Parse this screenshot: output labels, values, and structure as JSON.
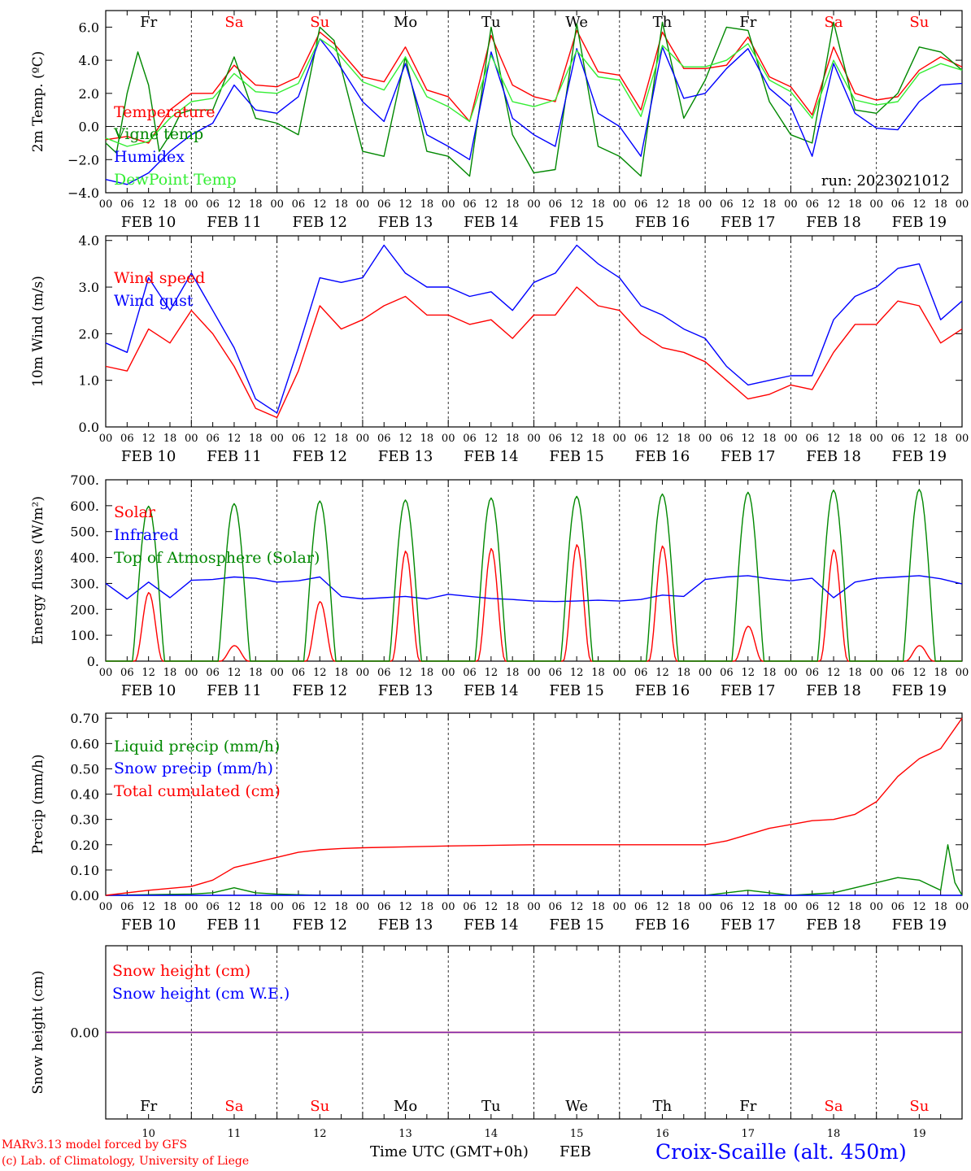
{
  "meteogram": {
    "run_label": "run: 2023021012",
    "location": "Croix-Scaille (alt. 450m)",
    "credit_line1": "MARv3.13 model forced by GFS",
    "credit_line2": "(c) Lab. of Climatology, University of Liege",
    "time_axis_label": "Time UTC (GMT+0h)",
    "month_label": "FEB",
    "colors": {
      "red": "#ff0000",
      "blue": "#0000ff",
      "dkgreen": "#008800",
      "ltgreen": "#33ee33",
      "purple": "#7a1fa8",
      "grid": "#000000",
      "axis": "#000000"
    }
  },
  "chart_data": [
    {
      "type": "line",
      "title": "",
      "ylabel": "2m Temp. (ºC)",
      "ylim": [
        -4,
        7
      ],
      "yticks": [
        6.0,
        4.0,
        2.0,
        0.0,
        -2.0,
        -4.0
      ],
      "ytick_labels": [
        "6.0",
        "4.0",
        "2.0",
        "0.0",
        "−2.0",
        "−4.0"
      ],
      "x_unit": "hours since FEB 10 00 UTC",
      "xlim": [
        0,
        240
      ],
      "hour_ticks": [
        "00",
        "06",
        "12",
        "18"
      ],
      "date_labels": [
        "FEB 10",
        "FEB 11",
        "FEB 12",
        "FEB 13",
        "FEB 14",
        "FEB 15",
        "FEB 16",
        "FEB 17",
        "FEB 18",
        "FEB 19"
      ],
      "weekdays": [
        "Fr",
        "Sa",
        "Su",
        "Mo",
        "Tu",
        "We",
        "Th",
        "Fr",
        "Sa",
        "Su"
      ],
      "weekday_colors": [
        "#000000",
        "#ff0000",
        "#ff0000",
        "#000000",
        "#000000",
        "#000000",
        "#000000",
        "#000000",
        "#ff0000",
        "#ff0000"
      ],
      "zero_line": true,
      "series": [
        {
          "name": "Temperature",
          "color": "#ff0000",
          "x": [
            0,
            6,
            12,
            18,
            24,
            30,
            36,
            42,
            48,
            54,
            60,
            64,
            72,
            78,
            84,
            90,
            96,
            102,
            108,
            114,
            120,
            126,
            132,
            138,
            144,
            150,
            156,
            162,
            168,
            174,
            180,
            186,
            192,
            198,
            204,
            210,
            216,
            222,
            228,
            234,
            240
          ],
          "y": [
            -0.8,
            -0.6,
            -1.0,
            1.0,
            2.0,
            2.0,
            3.7,
            2.5,
            2.4,
            3.0,
            5.7,
            5.0,
            3.0,
            2.7,
            4.8,
            2.2,
            1.8,
            0.3,
            5.5,
            2.5,
            1.8,
            1.5,
            5.8,
            3.3,
            3.1,
            1.0,
            5.7,
            3.5,
            3.5,
            3.7,
            5.4,
            3.0,
            2.4,
            0.7,
            4.8,
            2.0,
            1.6,
            1.8,
            3.4,
            4.2,
            3.6
          ]
        },
        {
          "name": "Vigne temp",
          "color": "#008800",
          "x": [
            0,
            3,
            6,
            9,
            12,
            15,
            18,
            21,
            24,
            30,
            36,
            42,
            48,
            54,
            60,
            64,
            72,
            78,
            84,
            90,
            96,
            102,
            108,
            114,
            120,
            126,
            132,
            138,
            144,
            150,
            156,
            162,
            168,
            174,
            180,
            186,
            192,
            198,
            204,
            210,
            216,
            222,
            228,
            234,
            240
          ],
          "y": [
            -1.0,
            -1.6,
            2.0,
            4.5,
            2.5,
            -1.5,
            -0.5,
            0.8,
            1.0,
            1.0,
            4.2,
            0.5,
            0.2,
            -0.5,
            6.0,
            5.2,
            -1.5,
            -1.8,
            4.2,
            -1.5,
            -1.8,
            -3.0,
            6.0,
            -0.5,
            -2.8,
            -2.6,
            6.2,
            -1.2,
            -1.8,
            -3.0,
            6.3,
            0.5,
            2.8,
            6.0,
            5.8,
            1.5,
            -0.5,
            -1.0,
            6.3,
            1.0,
            0.8,
            2.0,
            4.8,
            4.5,
            3.4
          ]
        },
        {
          "name": "Humidex",
          "color": "#0000ff",
          "x": [
            0,
            6,
            12,
            18,
            24,
            30,
            36,
            42,
            48,
            54,
            60,
            64,
            72,
            78,
            84,
            90,
            96,
            102,
            108,
            114,
            120,
            126,
            132,
            138,
            144,
            150,
            156,
            162,
            168,
            174,
            180,
            186,
            192,
            198,
            204,
            210,
            216,
            222,
            228,
            234,
            240
          ],
          "y": [
            -3.2,
            -3.5,
            -2.8,
            -1.5,
            -0.5,
            0.2,
            2.5,
            1.0,
            0.8,
            1.8,
            5.3,
            4.2,
            1.5,
            0.3,
            3.8,
            -0.5,
            -1.2,
            -2.0,
            4.5,
            0.5,
            -0.5,
            -1.2,
            4.7,
            0.8,
            0.0,
            -1.8,
            4.8,
            1.7,
            2.0,
            3.5,
            4.7,
            2.3,
            1.2,
            -1.8,
            3.8,
            0.8,
            -0.1,
            -0.2,
            1.5,
            2.5,
            2.6
          ]
        },
        {
          "name": "DewPoint Temp",
          "color": "#33ee33",
          "x": [
            0,
            6,
            12,
            18,
            24,
            30,
            36,
            42,
            48,
            54,
            60,
            64,
            72,
            78,
            84,
            90,
            96,
            102,
            108,
            114,
            120,
            126,
            132,
            138,
            144,
            150,
            156,
            162,
            168,
            174,
            180,
            186,
            192,
            198,
            204,
            210,
            216,
            222,
            228,
            234,
            240
          ],
          "y": [
            -0.7,
            -1.2,
            -0.9,
            0.5,
            1.5,
            1.7,
            3.2,
            2.1,
            2.0,
            2.6,
            5.3,
            4.7,
            2.7,
            2.2,
            4.2,
            1.8,
            1.2,
            0.3,
            4.3,
            1.5,
            1.2,
            1.6,
            4.6,
            3.0,
            2.8,
            0.6,
            4.9,
            3.6,
            3.6,
            4.0,
            5.0,
            2.8,
            2.1,
            0.5,
            4.0,
            1.6,
            1.3,
            1.5,
            3.2,
            3.8,
            3.4
          ]
        }
      ]
    },
    {
      "type": "line",
      "title": "",
      "ylabel": "10m Wind (m/s)",
      "ylim": [
        0,
        4.1
      ],
      "yticks": [
        4.0,
        3.0,
        2.0,
        1.0,
        0.0
      ],
      "ytick_labels": [
        "4.0",
        "3.0",
        "2.0",
        "1.0",
        "0.0"
      ],
      "x_unit": "hours since FEB 10 00 UTC",
      "xlim": [
        0,
        240
      ],
      "hour_ticks": [
        "00",
        "06",
        "12",
        "18"
      ],
      "date_labels": [
        "FEB 10",
        "FEB 11",
        "FEB 12",
        "FEB 13",
        "FEB 14",
        "FEB 15",
        "FEB 16",
        "FEB 17",
        "FEB 18",
        "FEB 19"
      ],
      "series": [
        {
          "name": "Wind speed",
          "color": "#ff0000",
          "x": [
            0,
            6,
            12,
            18,
            24,
            30,
            36,
            42,
            48,
            54,
            60,
            66,
            72,
            78,
            84,
            90,
            96,
            102,
            108,
            114,
            120,
            126,
            132,
            138,
            144,
            150,
            156,
            162,
            168,
            174,
            180,
            186,
            192,
            198,
            204,
            210,
            216,
            222,
            228,
            234,
            240
          ],
          "y": [
            1.3,
            1.2,
            2.1,
            1.8,
            2.5,
            2.0,
            1.3,
            0.4,
            0.2,
            1.2,
            2.6,
            2.1,
            2.3,
            2.6,
            2.8,
            2.4,
            2.4,
            2.2,
            2.3,
            1.9,
            2.4,
            2.4,
            3.0,
            2.6,
            2.5,
            2.0,
            1.7,
            1.6,
            1.4,
            1.0,
            0.6,
            0.7,
            0.9,
            0.8,
            1.6,
            2.2,
            2.2,
            2.7,
            2.6,
            1.8,
            2.1
          ]
        },
        {
          "name": "Wind gust",
          "color": "#0000ff",
          "x": [
            0,
            6,
            12,
            18,
            24,
            30,
            36,
            42,
            48,
            54,
            60,
            66,
            72,
            78,
            84,
            90,
            96,
            102,
            108,
            114,
            120,
            126,
            132,
            138,
            144,
            150,
            156,
            162,
            168,
            174,
            180,
            186,
            192,
            198,
            204,
            210,
            216,
            222,
            228,
            234,
            240
          ],
          "y": [
            1.8,
            1.6,
            3.2,
            2.5,
            3.3,
            2.5,
            1.7,
            0.6,
            0.3,
            1.7,
            3.2,
            3.1,
            3.2,
            3.9,
            3.3,
            3.0,
            3.0,
            2.8,
            2.9,
            2.5,
            3.1,
            3.3,
            3.9,
            3.5,
            3.2,
            2.6,
            2.4,
            2.1,
            1.9,
            1.3,
            0.9,
            1.0,
            1.1,
            1.1,
            2.3,
            2.8,
            3.0,
            3.4,
            3.5,
            2.3,
            2.7
          ]
        }
      ]
    },
    {
      "type": "line",
      "title": "",
      "ylabel": "Energy fluxes (W/m²)",
      "ylim": [
        0,
        700
      ],
      "yticks": [
        700,
        600,
        500,
        400,
        300,
        200,
        100,
        0
      ],
      "ytick_labels": [
        "700.",
        "600.",
        "500.",
        "400.",
        "300.",
        "200.",
        "100.",
        "0."
      ],
      "x_unit": "hours since FEB 10 00 UTC",
      "xlim": [
        0,
        240
      ],
      "hour_ticks": [
        "00",
        "06",
        "12",
        "18"
      ],
      "date_labels": [
        "FEB 10",
        "FEB 11",
        "FEB 12",
        "FEB 13",
        "FEB 14",
        "FEB 15",
        "FEB 16",
        "FEB 17",
        "FEB 18",
        "FEB 19"
      ],
      "series": [
        {
          "name": "Solar",
          "color": "#ff0000",
          "x": [
            0,
            24,
            48,
            72,
            96,
            120,
            144,
            168,
            192,
            216
          ],
          "daily_peak": [
            265,
            60,
            230,
            425,
            435,
            450,
            445,
            135,
            430,
            60
          ]
        },
        {
          "name": "Infrared",
          "color": "#0000ff",
          "x": [
            0,
            6,
            12,
            18,
            24,
            30,
            36,
            42,
            48,
            54,
            60,
            66,
            72,
            78,
            84,
            90,
            96,
            102,
            108,
            114,
            120,
            126,
            132,
            138,
            144,
            150,
            156,
            162,
            168,
            174,
            180,
            186,
            192,
            198,
            204,
            210,
            216,
            222,
            228,
            234,
            240
          ],
          "y": [
            300,
            240,
            305,
            245,
            312,
            315,
            325,
            320,
            305,
            310,
            325,
            250,
            240,
            245,
            250,
            240,
            258,
            250,
            242,
            238,
            232,
            230,
            232,
            235,
            232,
            238,
            255,
            250,
            315,
            325,
            330,
            318,
            310,
            320,
            245,
            305,
            320,
            325,
            330,
            318,
            298
          ]
        },
        {
          "name": "Top of Atmosphere (Solar)",
          "color": "#008800",
          "x": [
            0,
            24,
            48,
            72,
            96,
            120,
            144,
            168,
            192,
            216
          ],
          "daily_peak": [
            598,
            608,
            618,
            622,
            630,
            636,
            645,
            652,
            660,
            663
          ]
        }
      ]
    },
    {
      "type": "line",
      "title": "",
      "ylabel": "Precip (mm/h)",
      "ylim": [
        0,
        0.72
      ],
      "yticks": [
        0.7,
        0.6,
        0.5,
        0.4,
        0.3,
        0.2,
        0.1,
        0.0
      ],
      "ytick_labels": [
        "0.70",
        "0.60",
        "0.50",
        "0.40",
        "0.30",
        "0.20",
        "0.10",
        "0.00"
      ],
      "x_unit": "hours since FEB 10 00 UTC",
      "xlim": [
        0,
        240
      ],
      "hour_ticks": [
        "00",
        "06",
        "12",
        "18"
      ],
      "date_labels": [
        "FEB 10",
        "FEB 11",
        "FEB 12",
        "FEB 13",
        "FEB 14",
        "FEB 15",
        "FEB 16",
        "FEB 17",
        "FEB 18",
        "FEB 19"
      ],
      "series": [
        {
          "name": "Liquid precip (mm/h)",
          "color": "#008800",
          "x": [
            0,
            24,
            30,
            36,
            42,
            48,
            60,
            168,
            174,
            180,
            186,
            192,
            204,
            210,
            216,
            222,
            228,
            234,
            236,
            238,
            240
          ],
          "y": [
            0.0,
            0.005,
            0.01,
            0.03,
            0.01,
            0.005,
            0.0,
            0.0,
            0.01,
            0.02,
            0.01,
            0.0,
            0.01,
            0.03,
            0.05,
            0.07,
            0.06,
            0.02,
            0.2,
            0.05,
            0.0
          ]
        },
        {
          "name": "Snow precip (mm/h)",
          "color": "#0000ff",
          "x": [
            0,
            240
          ],
          "y": [
            0.0,
            0.0
          ]
        },
        {
          "name": "Total cumulated (cm)",
          "color": "#ff0000",
          "x": [
            0,
            12,
            24,
            30,
            36,
            42,
            48,
            54,
            60,
            66,
            72,
            96,
            120,
            144,
            168,
            174,
            180,
            186,
            192,
            198,
            204,
            210,
            216,
            222,
            228,
            234,
            240
          ],
          "y": [
            0.0,
            0.02,
            0.035,
            0.06,
            0.11,
            0.13,
            0.15,
            0.17,
            0.18,
            0.185,
            0.188,
            0.195,
            0.2,
            0.2,
            0.2,
            0.215,
            0.24,
            0.265,
            0.28,
            0.295,
            0.3,
            0.32,
            0.37,
            0.47,
            0.54,
            0.58,
            0.7
          ]
        }
      ]
    },
    {
      "type": "line",
      "title": "",
      "ylabel": "Snow height (cm)",
      "ylim": [
        -1,
        1
      ],
      "yticks": [
        0.0
      ],
      "ytick_labels": [
        "0.00"
      ],
      "x_unit": "hours since FEB 10 00 UTC",
      "xlim": [
        0,
        240
      ],
      "weekdays": [
        "Fr",
        "Sa",
        "Su",
        "Mo",
        "Tu",
        "We",
        "Th",
        "Fr",
        "Sa",
        "Su"
      ],
      "weekday_colors": [
        "#000000",
        "#ff0000",
        "#ff0000",
        "#000000",
        "#000000",
        "#000000",
        "#000000",
        "#000000",
        "#ff0000",
        "#ff0000"
      ],
      "day_numbers": [
        "10",
        "11",
        "12",
        "13",
        "14",
        "15",
        "16",
        "17",
        "18",
        "19"
      ],
      "series": [
        {
          "name": "Snow height (cm)",
          "color": "#ff0000",
          "x": [
            0,
            240
          ],
          "y": [
            0.0,
            0.0
          ]
        },
        {
          "name": "Snow height (cm W.E.)",
          "color": "#0000ff",
          "x": [
            0,
            240
          ],
          "y": [
            0.0,
            0.0
          ]
        }
      ]
    }
  ]
}
